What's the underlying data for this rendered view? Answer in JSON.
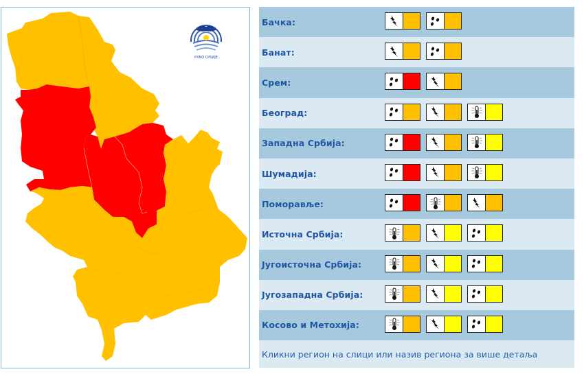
{
  "colors": {
    "red": "#ff0000",
    "orange": "#ffc000",
    "yellow": "#ffff00",
    "label": "#1f57a5",
    "row_dark": "#a7c9dd",
    "row_light": "#dbe9f2"
  },
  "map": {
    "logo_text": "РХМЗ СРБИЈЕ",
    "regions": [
      {
        "name": "Бачка",
        "level": "orange"
      },
      {
        "name": "Банат",
        "level": "orange"
      },
      {
        "name": "Срем",
        "level": "red"
      },
      {
        "name": "Београд",
        "level": "orange"
      },
      {
        "name": "Западна Србија",
        "level": "red"
      },
      {
        "name": "Шумадија",
        "level": "red"
      },
      {
        "name": "Поморавље",
        "level": "red"
      },
      {
        "name": "Источна Србија",
        "level": "orange"
      },
      {
        "name": "Југоисточна Србија",
        "level": "orange"
      },
      {
        "name": "Југозападна Србија",
        "level": "orange"
      },
      {
        "name": "Косово и Метохија",
        "level": "orange"
      }
    ]
  },
  "table": {
    "rows": [
      {
        "label": "Бачка:",
        "warnings": [
          {
            "icon": "storm-icon",
            "level": "orange"
          },
          {
            "icon": "rain-icon",
            "level": "orange"
          }
        ]
      },
      {
        "label": "Банат:",
        "warnings": [
          {
            "icon": "storm-icon",
            "level": "orange"
          },
          {
            "icon": "rain-icon",
            "level": "orange"
          }
        ]
      },
      {
        "label": "Срем:",
        "warnings": [
          {
            "icon": "rain-icon",
            "level": "red"
          },
          {
            "icon": "storm-icon",
            "level": "orange"
          }
        ]
      },
      {
        "label": "Београд:",
        "warnings": [
          {
            "icon": "rain-icon",
            "level": "orange"
          },
          {
            "icon": "storm-icon",
            "level": "orange"
          },
          {
            "icon": "heat-icon",
            "level": "yellow"
          }
        ]
      },
      {
        "label": "Западна Србија:",
        "warnings": [
          {
            "icon": "rain-icon",
            "level": "red"
          },
          {
            "icon": "storm-icon",
            "level": "orange"
          },
          {
            "icon": "heat-icon",
            "level": "yellow"
          }
        ]
      },
      {
        "label": "Шумадија:",
        "warnings": [
          {
            "icon": "rain-icon",
            "level": "red"
          },
          {
            "icon": "storm-icon",
            "level": "orange"
          },
          {
            "icon": "heat-icon",
            "level": "yellow"
          }
        ]
      },
      {
        "label": "Поморавље:",
        "warnings": [
          {
            "icon": "rain-icon",
            "level": "red"
          },
          {
            "icon": "heat-icon",
            "level": "orange"
          },
          {
            "icon": "storm-icon",
            "level": "orange"
          }
        ]
      },
      {
        "label": "Источна Србија:",
        "warnings": [
          {
            "icon": "heat-icon",
            "level": "orange"
          },
          {
            "icon": "storm-icon",
            "level": "yellow"
          },
          {
            "icon": "rain-icon",
            "level": "yellow"
          }
        ]
      },
      {
        "label": "Југоисточна Србија:",
        "warnings": [
          {
            "icon": "heat-icon",
            "level": "orange"
          },
          {
            "icon": "storm-icon",
            "level": "yellow"
          },
          {
            "icon": "rain-icon",
            "level": "yellow"
          }
        ]
      },
      {
        "label": "Југозападна Србија:",
        "warnings": [
          {
            "icon": "heat-icon",
            "level": "orange"
          },
          {
            "icon": "storm-icon",
            "level": "yellow"
          },
          {
            "icon": "rain-icon",
            "level": "yellow"
          }
        ]
      },
      {
        "label": "Косово и Метохија:",
        "warnings": [
          {
            "icon": "heat-icon",
            "level": "orange"
          },
          {
            "icon": "storm-icon",
            "level": "yellow"
          },
          {
            "icon": "rain-icon",
            "level": "yellow"
          }
        ]
      }
    ],
    "footer": "Кликни регион на слици или назив региона за више детаља"
  }
}
